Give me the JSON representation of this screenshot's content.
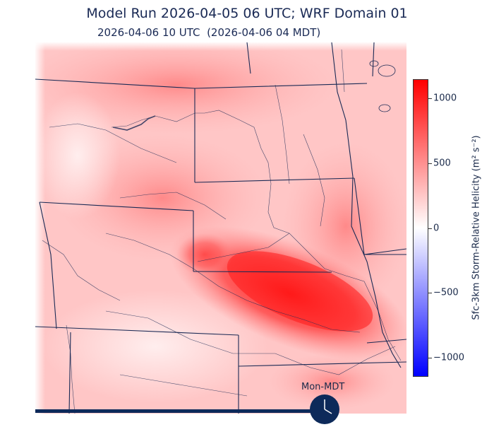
{
  "title": "Model Run 2026-04-05 06 UTC; WRF Domain 01",
  "subtitle": "2026-04-06 10 UTC  (2026-04-06 04 MDT)",
  "colorbar": {
    "label": "Sfc-3km Storm-Relative Helicity (m² s⁻²)",
    "ticks": [
      "1000",
      "500",
      "0",
      "−500",
      "−1000"
    ],
    "tick_values": [
      1000,
      500,
      0,
      -500,
      -1000
    ],
    "range": [
      -1150,
      1150
    ],
    "colors": {
      "max": "#ff0000",
      "zero": "#ffffff",
      "min": "#0000ff"
    }
  },
  "timezone_label": "Mon-MDT",
  "colors": {
    "borders": "#1a2a55",
    "field": "#ff3b3b",
    "clock": "#0d2a5a"
  }
}
